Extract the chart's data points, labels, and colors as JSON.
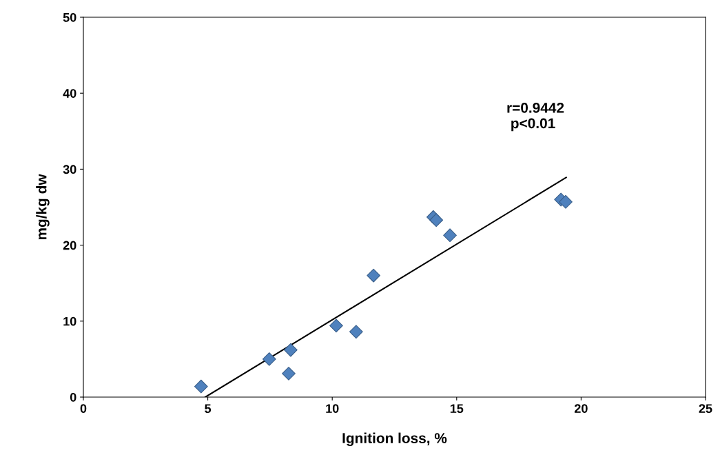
{
  "chart_data": {
    "type": "scatter",
    "xlabel": "Ignition loss, %",
    "ylabel": "mg/kg dw",
    "x": [
      4.73,
      7.47,
      8.33,
      8.25,
      10.16,
      10.96,
      11.66,
      14.06,
      14.18,
      14.73,
      19.19,
      19.38
    ],
    "series": [
      {
        "color": "#4f81bd",
        "marker": "diamond",
        "values": [
          1.4,
          5.0,
          6.2,
          3.1,
          9.4,
          8.6,
          16.0,
          23.7,
          23.3,
          21.3,
          26.0,
          25.7
        ]
      },
      {
        "type": "line",
        "color": "#000000",
        "marker": "none",
        "x": [
          4.9,
          19.4
        ],
        "values": [
          0,
          28.9
        ]
      }
    ],
    "annotations": [
      "r=0.9442\n p<0.01"
    ],
    "grid": false,
    "xlim": [
      0,
      25
    ],
    "xticks": [
      0,
      5,
      10,
      15,
      20,
      25
    ],
    "ylim": [
      0,
      50
    ],
    "yticks": [
      0,
      10,
      20,
      30,
      40,
      50
    ]
  }
}
